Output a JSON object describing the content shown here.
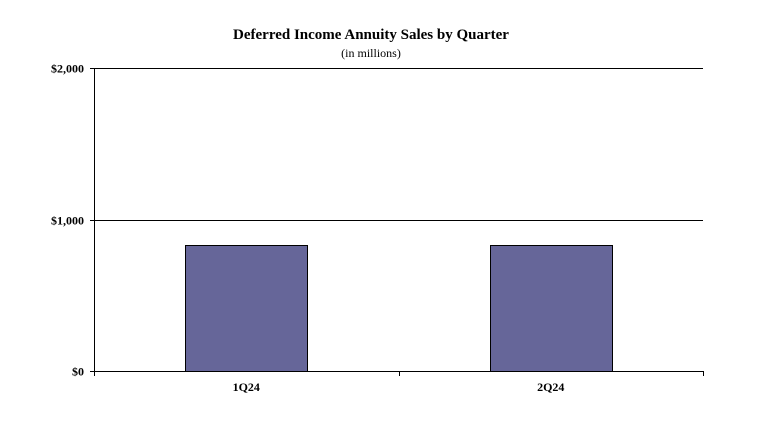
{
  "chart": {
    "title": "Deferred Income Annuity Sales by Quarter",
    "subtitle": "(in millions)"
  },
  "chart_data": {
    "type": "bar",
    "title": "Deferred Income Annuity Sales by Quarter",
    "subtitle": "(in millions)",
    "categories": [
      "1Q24",
      "2Q24"
    ],
    "series": [
      {
        "values": [
          833,
          829
        ]
      }
    ],
    "ylim": [
      0,
      2000
    ],
    "yticks": [
      0,
      1000,
      2000
    ],
    "ytick_labels": [
      "$0",
      "$1,000",
      "$2,000"
    ],
    "grid": true,
    "bar_color": "#666699",
    "bar_edge_color": "#000000",
    "xlabel": "",
    "ylabel": ""
  }
}
